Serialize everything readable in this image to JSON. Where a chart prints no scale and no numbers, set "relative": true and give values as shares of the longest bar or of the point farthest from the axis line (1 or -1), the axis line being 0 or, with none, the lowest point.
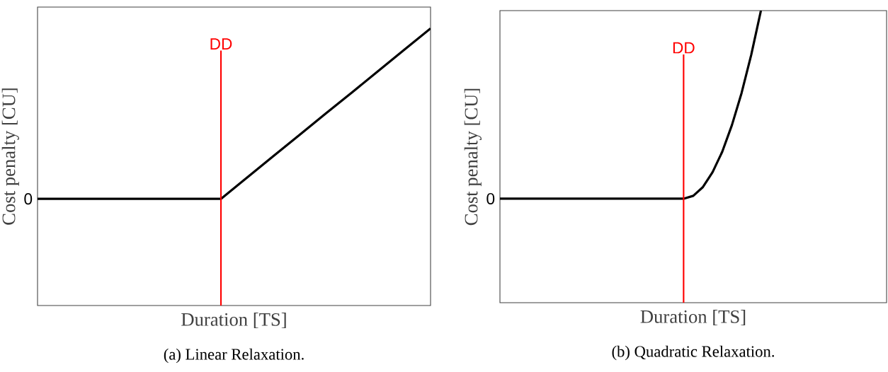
{
  "chart_data": [
    {
      "type": "line",
      "relative": true,
      "xlabel": "Duration [TS]",
      "ylabel": "Cost penalty [CU]",
      "categories": [
        null,
        null,
        null,
        null,
        null,
        null,
        null,
        null,
        null,
        null,
        null,
        null,
        null,
        null,
        null,
        null
      ],
      "series": [
        {
          "color": "#000000",
          "values": [
            0.385,
            0.385,
            0.385,
            0.385,
            0.385,
            0.385,
            0.385,
            0.385,
            0.462,
            0.539,
            0.616,
            0.693,
            0.769,
            0.846,
            0.923,
            1
          ]
        }
      ],
      "annotations": [
        "0",
        "DD",
        "(a) Linear Relaxation."
      ]
    },
    {
      "type": "line",
      "relative": true,
      "xlabel": "Duration [TS]",
      "ylabel": "Cost penalty [CU]",
      "categories": [
        null,
        null,
        null,
        null,
        null,
        null,
        null,
        null,
        null,
        null,
        null,
        null,
        null,
        null,
        null,
        null,
        null,
        null,
        null,
        null,
        null,
        null,
        null,
        null,
        null,
        null,
        null,
        null,
        null,
        null,
        null,
        null,
        null,
        null,
        null,
        null,
        null,
        null,
        null,
        null,
        null
      ],
      "series": [
        {
          "color": "#000000",
          "values": [
            0.356,
            0.356,
            0.356,
            0.356,
            0.356,
            0.356,
            0.356,
            0.356,
            0.356,
            0.356,
            0.356,
            0.356,
            0.356,
            0.356,
            0.356,
            0.356,
            0.356,
            0.356,
            0.356,
            0.356,
            0.366,
            0.396,
            0.447,
            0.517,
            0.608,
            0.718,
            0.849,
            1,
            null,
            null,
            null,
            null,
            null,
            null,
            null,
            null,
            null,
            null,
            null,
            null,
            null
          ]
        }
      ],
      "annotations": [
        "0",
        "DD",
        "(b) Quadratic Relaxation."
      ]
    }
  ]
}
